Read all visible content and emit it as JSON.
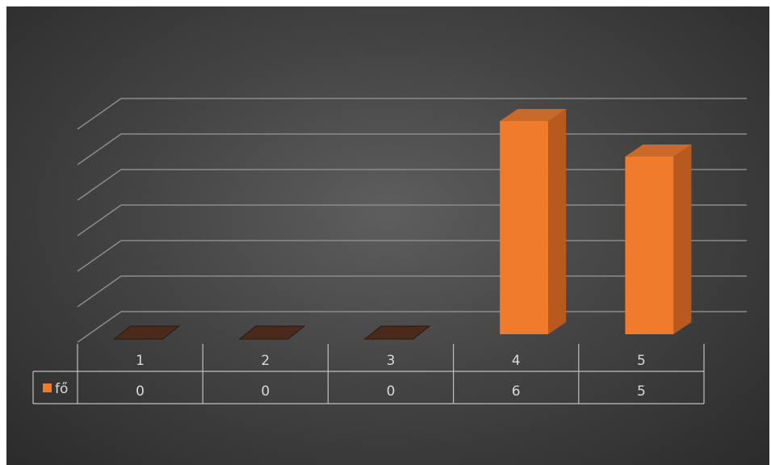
{
  "chart_data": {
    "type": "bar",
    "categories": [
      "1",
      "2",
      "3",
      "4",
      "5"
    ],
    "series": [
      {
        "name": "fő",
        "values": [
          0,
          0,
          0,
          6,
          5
        ]
      }
    ],
    "ylim": [
      0,
      6
    ],
    "grid": true,
    "legend": "data-table-left",
    "colors": {
      "bar": "#f07b2c",
      "bar_side": "#b85a1f",
      "bar_top": "#c9692a",
      "zero_bar": "#4a2a1c"
    }
  }
}
